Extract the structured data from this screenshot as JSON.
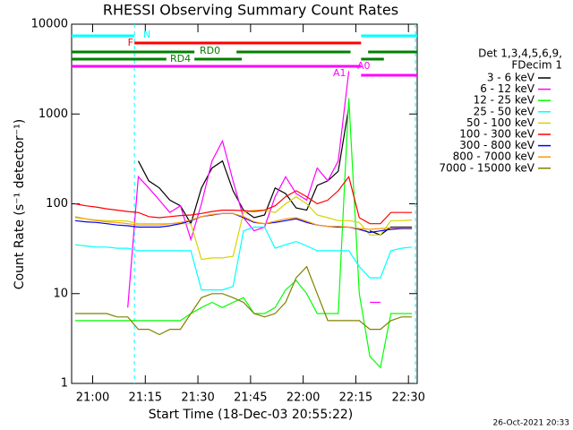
{
  "chart_data": {
    "type": "line",
    "title": "RHESSI Observing Summary Count Rates",
    "x_label": "Start Time (18-Dec-03 20:55:22)",
    "y_label": "Count Rate (s⁻¹ detector⁻¹)",
    "timestamp": "26-Oct-2021 20:33",
    "log_y": true,
    "xlim": [
      1254,
      1352.5
    ],
    "ylim": [
      1,
      10000
    ],
    "xticks": [
      {
        "value": 1260,
        "label": "21:00"
      },
      {
        "value": 1275,
        "label": "21:15"
      },
      {
        "value": 1290,
        "label": "21:30"
      },
      {
        "value": 1305,
        "label": "21:45"
      },
      {
        "value": 1320,
        "label": "22:00"
      },
      {
        "value": 1335,
        "label": "22:15"
      },
      {
        "value": 1350,
        "label": "22:30"
      }
    ],
    "yticks": [
      1,
      10,
      100,
      1000,
      10000
    ],
    "legend_title": [
      "Det 1,3,4,5,6,9,",
      "FDecim 1"
    ],
    "x": [
      1255,
      1258,
      1261,
      1264,
      1267,
      1270,
      1273,
      1276,
      1279,
      1282,
      1285,
      1288,
      1291,
      1294,
      1297,
      1300,
      1303,
      1306,
      1309,
      1312,
      1315,
      1318,
      1321,
      1324,
      1327,
      1330,
      1333,
      1336,
      1339,
      1342,
      1345,
      1348,
      1351
    ],
    "series": [
      {
        "name": "3 - 6 keV",
        "color": "#000000",
        "values": [
          null,
          null,
          null,
          null,
          null,
          null,
          300,
          180,
          150,
          110,
          95,
          60,
          150,
          250,
          300,
          140,
          85,
          70,
          75,
          150,
          130,
          90,
          85,
          160,
          180,
          230,
          1200,
          null,
          50,
          45,
          55,
          55,
          55
        ]
      },
      {
        "name": "6 - 12 keV",
        "color": "#ff00ff",
        "values": [
          null,
          null,
          null,
          null,
          null,
          7,
          200,
          150,
          110,
          80,
          95,
          40,
          100,
          300,
          500,
          180,
          70,
          50,
          55,
          120,
          200,
          130,
          110,
          250,
          180,
          300,
          3000,
          null,
          8,
          8,
          null,
          null,
          null
        ]
      },
      {
        "name": "12 - 25 keV",
        "color": "#00ff00",
        "values": [
          5,
          5,
          5,
          5,
          5,
          5,
          5,
          5,
          5,
          5,
          5,
          6,
          7,
          8,
          7,
          8,
          9,
          6,
          6,
          7,
          11,
          14,
          10,
          6,
          6,
          6,
          1500,
          10,
          2,
          1.5,
          6,
          6,
          6
        ]
      },
      {
        "name": "25 - 50 keV",
        "color": "#00ffff",
        "values": [
          35,
          34,
          33,
          33,
          32,
          32,
          30,
          30,
          30,
          30,
          30,
          30,
          11,
          11,
          11,
          12,
          50,
          55,
          55,
          32,
          35,
          38,
          34,
          30,
          30,
          30,
          30,
          20,
          15,
          15,
          30,
          32,
          33
        ]
      },
      {
        "name": "50 - 100 keV",
        "color": "#d4d400",
        "values": [
          70,
          68,
          66,
          65,
          65,
          64,
          60,
          60,
          60,
          60,
          60,
          60,
          24,
          25,
          25,
          26,
          80,
          85,
          85,
          80,
          100,
          120,
          100,
          75,
          70,
          65,
          65,
          62,
          45,
          45,
          65,
          65,
          66
        ]
      },
      {
        "name": "100 - 300 keV",
        "color": "#ff0000",
        "values": [
          100,
          95,
          92,
          88,
          85,
          82,
          80,
          72,
          70,
          72,
          74,
          75,
          78,
          82,
          85,
          85,
          84,
          82,
          85,
          95,
          120,
          140,
          120,
          100,
          110,
          140,
          200,
          70,
          60,
          60,
          80,
          80,
          80
        ]
      },
      {
        "name": "300 - 800 keV",
        "color": "#0000ff",
        "values": [
          65,
          63,
          62,
          60,
          58,
          57,
          55,
          55,
          55,
          57,
          60,
          65,
          72,
          75,
          78,
          78,
          70,
          62,
          60,
          62,
          65,
          68,
          62,
          58,
          56,
          55,
          55,
          52,
          48,
          50,
          52,
          53,
          53
        ]
      },
      {
        "name": "800 - 7000 keV",
        "color": "#ff9900",
        "values": [
          72,
          68,
          65,
          63,
          62,
          60,
          58,
          58,
          58,
          60,
          62,
          66,
          72,
          76,
          78,
          78,
          72,
          63,
          60,
          64,
          68,
          70,
          64,
          58,
          56,
          56,
          55,
          53,
          52,
          53,
          54,
          54,
          54
        ]
      },
      {
        "name": "7000 - 15000 keV",
        "color": "#808000",
        "values": [
          6,
          6,
          6,
          6,
          5.5,
          5.5,
          4,
          4,
          3.5,
          4,
          4,
          6,
          9,
          10,
          10,
          9,
          8,
          6,
          5.5,
          6,
          8,
          15,
          20,
          10,
          5,
          5,
          5,
          5,
          4,
          4,
          5,
          5.5,
          5.5
        ]
      }
    ],
    "vertical_lines": {
      "color": "#00ffff",
      "x": [
        1271.9,
        1352
      ]
    },
    "flags": [
      {
        "label": "N",
        "color": "#00ffff",
        "segments": [
          [
            1254,
            1271.9
          ],
          [
            1336.5,
            1352.5
          ]
        ]
      },
      {
        "label": "F",
        "color": "#ff0000",
        "segments": [
          [
            1271.9,
            1336.5
          ]
        ]
      },
      {
        "label": "RD0",
        "color": "#008000",
        "segments": [
          [
            1254,
            1289
          ],
          [
            1301,
            1333.5
          ],
          [
            1338.5,
            1352.5
          ]
        ]
      },
      {
        "label": "RD4",
        "color": "#008000",
        "segments": [
          [
            1254,
            1281
          ],
          [
            1289,
            1302.5
          ],
          [
            1336.5,
            1343
          ]
        ]
      },
      {
        "label": "A1",
        "color": "#ff00ff",
        "segments": [
          [
            1254,
            1336.5
          ]
        ]
      },
      {
        "label": "A0",
        "color": "#ff00ff",
        "segments": [
          [
            1336.5,
            1352.5
          ]
        ]
      }
    ]
  }
}
